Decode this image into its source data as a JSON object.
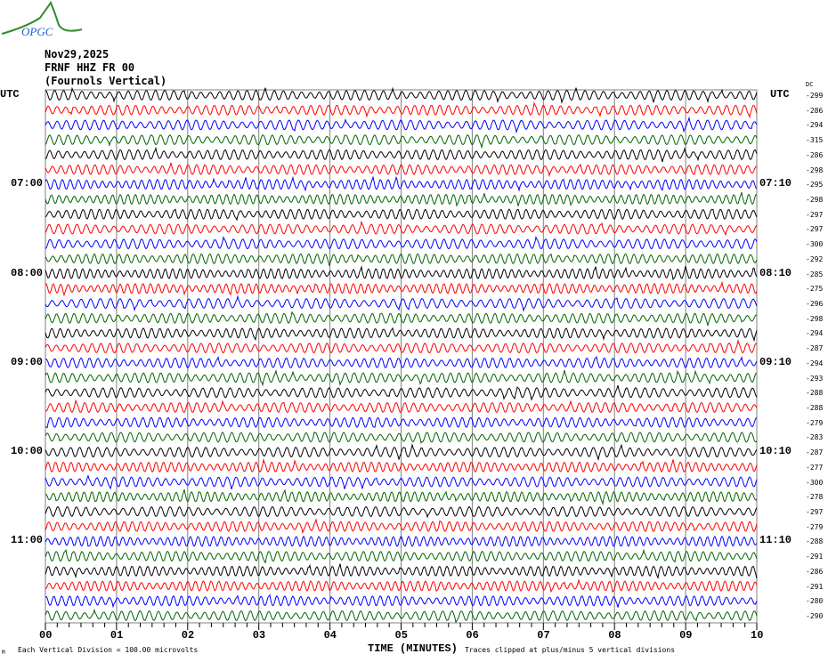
{
  "logo": {
    "text": "OPGC"
  },
  "header": {
    "date": "Nov29,2025",
    "station": "FRNF HHZ FR 00",
    "location": "(Fournols Vertical)"
  },
  "left_axis": {
    "title": "UTC",
    "hour_labels": [
      "07:00",
      "08:00",
      "09:00",
      "10:00",
      "11:00"
    ]
  },
  "right_axis": {
    "title": "UTC",
    "dc_title": "DC",
    "hour_labels": [
      "07:10",
      "08:10",
      "09:10",
      "10:10",
      "11:10"
    ]
  },
  "footer": {
    "scale_note": "Each Vertical Division =  100.00 microvolts",
    "clip_note": "Traces clipped at plus/minus 5 vertical divisions",
    "corner_mark": "M"
  },
  "colors": {
    "trace_cycle": [
      "#000000",
      "#ff0000",
      "#0000ff",
      "#006400"
    ],
    "grid": "#808080"
  },
  "chart_data": {
    "type": "line",
    "subtype": "helicorder",
    "xlabel": "TIME (MINUTES)",
    "x_ticks": [
      "00",
      "01",
      "02",
      "03",
      "04",
      "05",
      "06",
      "07",
      "08",
      "09",
      "10"
    ],
    "xlim": [
      0,
      10
    ],
    "minor_ticks_per_minute": 6,
    "rows_per_hour": 6,
    "row_minutes": 10,
    "grid": true,
    "dc_offsets": [
      -299,
      -286,
      -294,
      -315,
      -286,
      -298,
      -295,
      -298,
      -297,
      -297,
      -300,
      -292,
      -285,
      -275,
      -296,
      -298,
      -294,
      -287,
      -294,
      -293,
      -288,
      -288,
      -279,
      -283,
      -287,
      -277,
      -300,
      -278,
      -297,
      -279,
      -288,
      -291,
      -286,
      -291,
      -280,
      -290
    ]
  }
}
